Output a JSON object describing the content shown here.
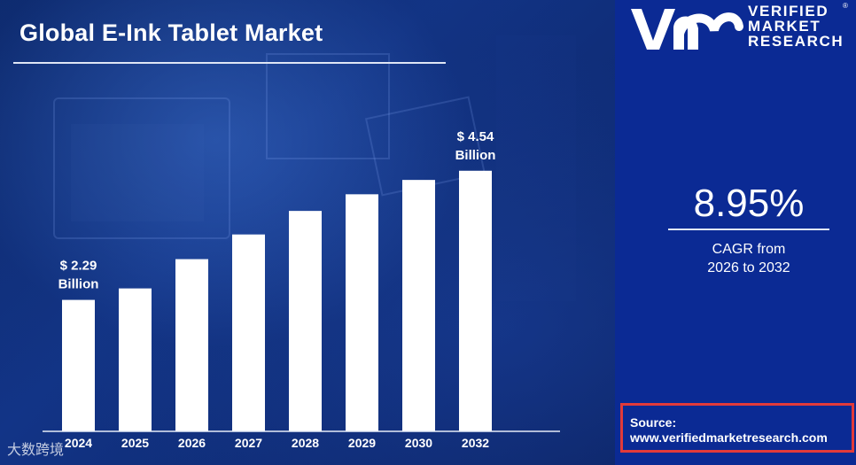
{
  "title": "Global E-Ink Tablet Market",
  "logo": {
    "line1": "VERIFIED",
    "line2": "MARKET",
    "line3": "RESEARCH",
    "reg": "®"
  },
  "cagr": {
    "value": "8.95%",
    "label_line1": "CAGR from",
    "label_line2": "2026 to 2032"
  },
  "source": {
    "label": "Source:",
    "url": "www.verifiedmarketresearch.com"
  },
  "watermark": "大数跨境",
  "colors": {
    "bar": "#ffffff",
    "panel": "#0b2a94",
    "source_border": "#e23a3a"
  },
  "chart_data": {
    "type": "bar",
    "title": "Global E-Ink Tablet Market",
    "categories": [
      "2024",
      "2025",
      "2026",
      "2027",
      "2028",
      "2029",
      "2030",
      "2032"
    ],
    "values": [
      2.29,
      2.49,
      3.0,
      3.43,
      3.84,
      4.13,
      4.38,
      4.54
    ],
    "unit": "USD Billion",
    "annotations": [
      {
        "index": 0,
        "line1": "$ 2.29",
        "line2": "Billion"
      },
      {
        "index": 7,
        "line1": "$ 4.54",
        "line2": "Billion"
      }
    ],
    "xlabel": "",
    "ylabel": "",
    "ylim": [
      0,
      5.2
    ],
    "grid": false,
    "legend": "none"
  }
}
